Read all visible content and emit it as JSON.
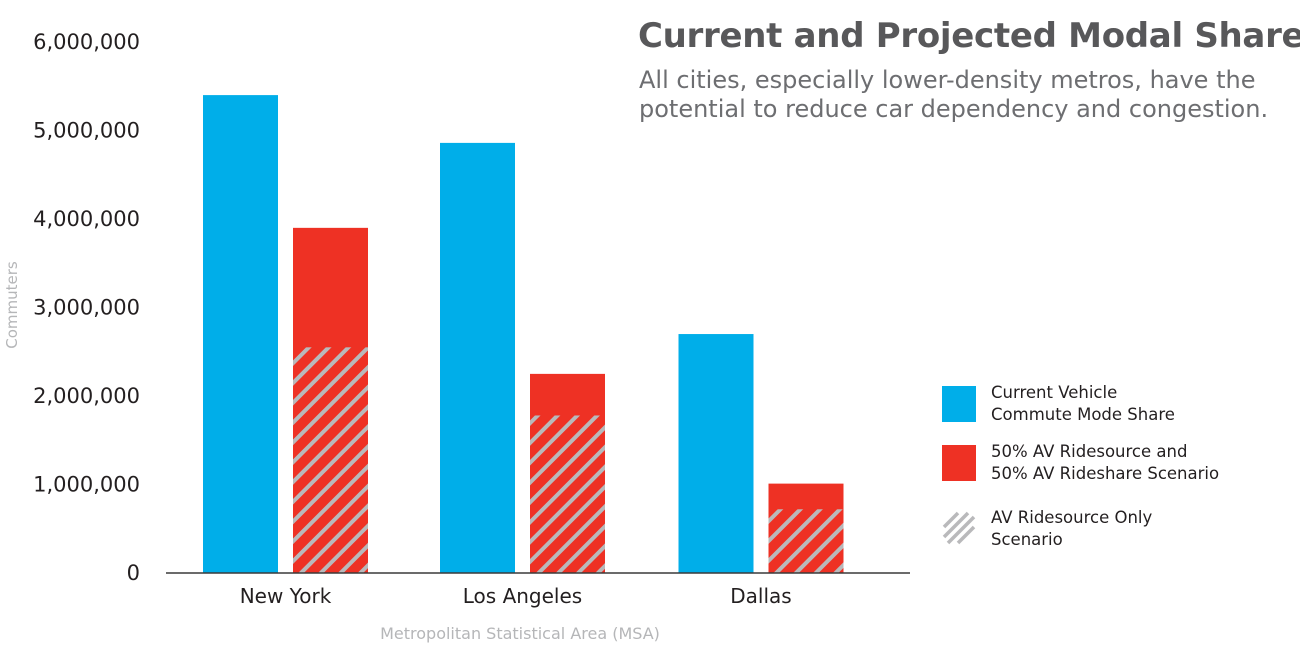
{
  "header": {
    "title": "Current and Projected Modal Share",
    "subtitle": "All cities, especially lower-density metros, have the potential to reduce car dependency and congestion."
  },
  "legend": [
    {
      "label_line1": "Current Vehicle",
      "label_line2": "Commute Mode Share",
      "color": "#00aee9"
    },
    {
      "label_line1": "50% AV Ridesource and",
      "label_line2": "50% AV Rideshare Scenario",
      "color": "#ee3124"
    },
    {
      "label_line1": "AV Ridesource Only",
      "label_line2": "Scenario",
      "color": "#b9b9bb"
    }
  ],
  "chart_data": {
    "type": "bar",
    "title": "Current and Projected Modal Share",
    "xlabel": "Metropolitan Statistical Area (MSA)",
    "ylabel": "Commuters",
    "categories": [
      "New York",
      "Los Angeles",
      "Dallas"
    ],
    "ylim": [
      0,
      6000000
    ],
    "yticks": [
      0,
      1000000,
      2000000,
      3000000,
      4000000,
      5000000,
      6000000
    ],
    "ytick_labels": [
      "0",
      "1,000,000",
      "2,000,000",
      "3,000,000",
      "4,000,000",
      "5,000,000",
      "6,000,000"
    ],
    "grid": false,
    "legend_position": "right",
    "series": [
      {
        "name": "Current Vehicle Commute Mode Share",
        "color": "#00aee9",
        "values": [
          5400000,
          4860000,
          2700000
        ]
      },
      {
        "name": "50% AV Ridesource and 50% AV Rideshare Scenario",
        "color": "#ee3124",
        "values": [
          3900000,
          2250000,
          1010000
        ]
      },
      {
        "name": "AV Ridesource Only Scenario",
        "color": "#b9b9bb",
        "hatched": true,
        "values": [
          2550000,
          1780000,
          720000
        ]
      }
    ]
  }
}
